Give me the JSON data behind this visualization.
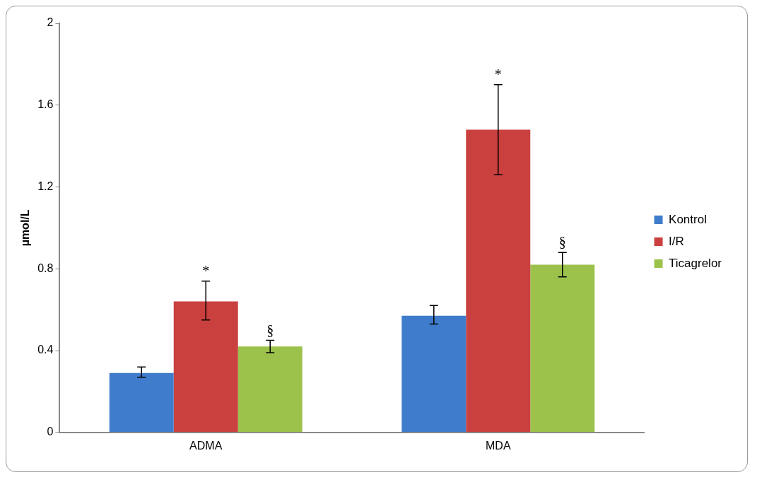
{
  "chart_data": {
    "type": "bar",
    "ylabel": "µmol/L",
    "categories": [
      "ADMA",
      "MDA"
    ],
    "series": [
      {
        "name": "Kontrol",
        "color": "#3f7ccb",
        "values": [
          0.29,
          0.57
        ],
        "errors": [
          [
            0.27,
            0.32
          ],
          [
            0.53,
            0.62
          ]
        ]
      },
      {
        "name": "I/R",
        "color": "#c9403f",
        "values": [
          0.64,
          1.48
        ],
        "errors": [
          [
            0.55,
            0.74
          ],
          [
            1.26,
            1.7
          ]
        ]
      },
      {
        "name": "Ticagrelor",
        "color": "#9cc24c",
        "values": [
          0.42,
          0.82
        ],
        "errors": [
          [
            0.39,
            0.45
          ],
          [
            0.76,
            0.88
          ]
        ]
      }
    ],
    "ylim": [
      0,
      2
    ],
    "yticks": [
      0,
      0.4,
      0.8,
      1.2,
      1.6,
      2
    ],
    "grid": false,
    "legend": "right",
    "annotations": [
      {
        "text": "*",
        "x": "ADMA",
        "y": 0.74
      },
      "§",
      {
        "text": "*",
        "x": "MDA",
        "y": 1.7
      },
      "§"
    ]
  }
}
